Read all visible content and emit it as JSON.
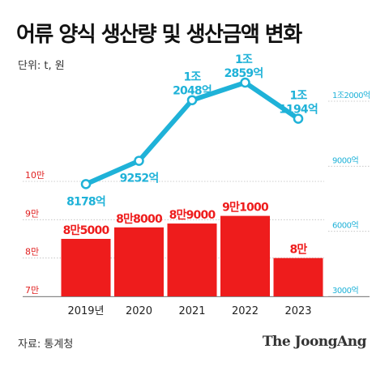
{
  "header": {
    "title": "어류 양식 생산량 및 생산금액 변화",
    "unit": "단위: t, 원"
  },
  "footer": {
    "source": "자료: 통계청",
    "brand": "The JoongAng"
  },
  "colors": {
    "bar": "#ee1c1c",
    "line": "#1fb2d8",
    "left_axis": "#e02020",
    "right_axis": "#1fb2d8"
  },
  "chart_data": {
    "type": "bar",
    "categories": [
      "2019년",
      "2020",
      "2021",
      "2022",
      "2023"
    ],
    "series": [
      {
        "type": "bar",
        "axis": "left",
        "values": [
          85000,
          88000,
          89000,
          91000,
          80000
        ],
        "labels": [
          "8만5000",
          "8만8000",
          "8만9000",
          "9만1000",
          "8만"
        ]
      },
      {
        "type": "line",
        "axis": "right",
        "values": [
          8178,
          9252,
          12048,
          12859,
          11194
        ],
        "labels": [
          [
            "8178억"
          ],
          [
            "9252억"
          ],
          [
            "1조",
            "2048억"
          ],
          [
            "1조",
            "2859억"
          ],
          [
            "1조",
            "1194억"
          ]
        ]
      }
    ],
    "left_axis": {
      "ticks": [
        70000,
        80000,
        90000,
        100000
      ],
      "tick_labels": [
        "7만",
        "8만",
        "9만",
        "10만"
      ],
      "range": [
        70000,
        100000
      ]
    },
    "right_axis": {
      "ticks": [
        3000,
        6000,
        9000,
        12000
      ],
      "tick_labels": [
        "3000억",
        "6000억",
        "9000억",
        "1조2000억"
      ],
      "range": [
        3000,
        12000
      ]
    },
    "grid": true
  }
}
